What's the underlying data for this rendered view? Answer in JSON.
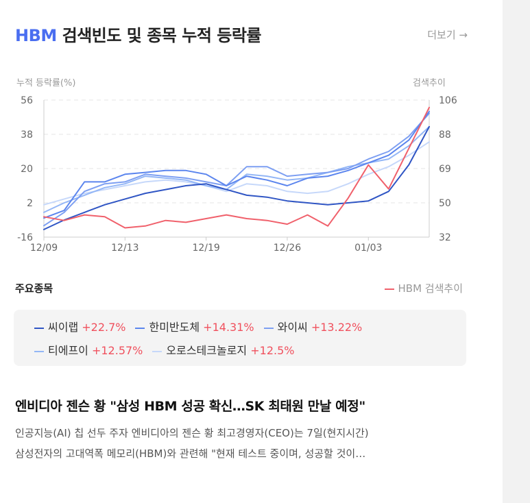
{
  "header": {
    "title_highlight": "HBM",
    "title_rest": " 검색빈도 및 종목 누적 등락률",
    "more_link": "더보기 →"
  },
  "colors": {
    "brand": "#4a6ef0",
    "positive": "#f0505d",
    "search_line": "#f0606b"
  },
  "chart_data": {
    "type": "line",
    "left_axis_title": "누적 등락률(%)",
    "right_axis_title": "검색추이",
    "left_ticks": [
      "56",
      "38",
      "20",
      "2",
      "-16"
    ],
    "right_ticks": [
      "106",
      "88",
      "69",
      "50",
      "32"
    ],
    "ylim_left": [
      -16,
      56
    ],
    "ylim_right": [
      32,
      106
    ],
    "x_tick_labels": [
      "12/09",
      "12/13",
      "12/19",
      "12/26",
      "01/03"
    ],
    "x_tick_index": [
      0,
      4,
      8,
      12,
      16
    ],
    "n_points": 20,
    "grid": true,
    "series": [
      {
        "name": "씨이랩",
        "axis": "left",
        "color": "#2f55c4",
        "width": 2,
        "values": [
          -12,
          -7,
          -3,
          1,
          4,
          7,
          9,
          11,
          12,
          9,
          6,
          5,
          3,
          2,
          1,
          2,
          3,
          8,
          22,
          42
        ]
      },
      {
        "name": "한미반도체",
        "axis": "left",
        "color": "#5b85ee",
        "width": 2,
        "values": [
          -6,
          -2,
          13,
          13,
          17,
          18,
          19,
          19,
          17,
          11,
          16,
          14,
          11,
          15,
          16,
          19,
          23,
          27,
          35,
          50
        ]
      },
      {
        "name": "와이씨",
        "axis": "left",
        "color": "#7d9ff2",
        "width": 2,
        "values": [
          -10,
          -3,
          8,
          12,
          13,
          17,
          16,
          15,
          13,
          11,
          21,
          21,
          16,
          17,
          18,
          20,
          25,
          29,
          37,
          49
        ]
      },
      {
        "name": "티에프이",
        "axis": "left",
        "color": "#93b6f6",
        "width": 2,
        "values": [
          -3,
          2,
          6,
          10,
          12,
          16,
          15,
          14,
          11,
          9,
          17,
          16,
          14,
          15,
          18,
          21,
          23,
          25,
          32,
          42
        ]
      },
      {
        "name": "오로스테크놀로지",
        "axis": "left",
        "color": "#c6d8fa",
        "width": 2,
        "values": [
          1,
          4,
          7,
          9,
          11,
          13,
          14,
          13,
          11,
          8,
          12,
          11,
          8,
          7,
          8,
          12,
          17,
          21,
          27,
          34
        ]
      },
      {
        "name": "HBM 검색추이",
        "axis": "right",
        "color": "#f0606b",
        "width": 2,
        "values": [
          43,
          41,
          44,
          43,
          37,
          38,
          41,
          40,
          42,
          44,
          42,
          41,
          39,
          44,
          38,
          53,
          71,
          58,
          80,
          102
        ]
      }
    ]
  },
  "section": {
    "stocks_label": "주요종목",
    "search_legend": "HBM 검색추이"
  },
  "legend": {
    "row1": [
      {
        "name": "씨이랩",
        "pct": "+22.7%",
        "color": "#2f55c4"
      },
      {
        "name": "한미반도체",
        "pct": "+14.31%",
        "color": "#5b85ee"
      },
      {
        "name": "와이씨",
        "pct": "+13.22%",
        "color": "#7d9ff2"
      }
    ],
    "row2": [
      {
        "name": "티에프이",
        "pct": "+12.57%",
        "color": "#93b6f6"
      },
      {
        "name": "오로스테크놀로지",
        "pct": "+12.5%",
        "color": "#c6d8fa"
      }
    ]
  },
  "news": {
    "title": "엔비디아 젠슨 황 \"삼성 HBM 성공 확신…SK 최태원 만날 예정\"",
    "line1": "인공지능(AI) 칩 선두 주자 엔비디아의 젠슨 황 최고경영자(CEO)는 7일(현지시간)",
    "line2": "삼성전자의 고대역폭 메모리(HBM)와 관련해 \"현재 테스트 중이며, 성공할 것이…"
  }
}
